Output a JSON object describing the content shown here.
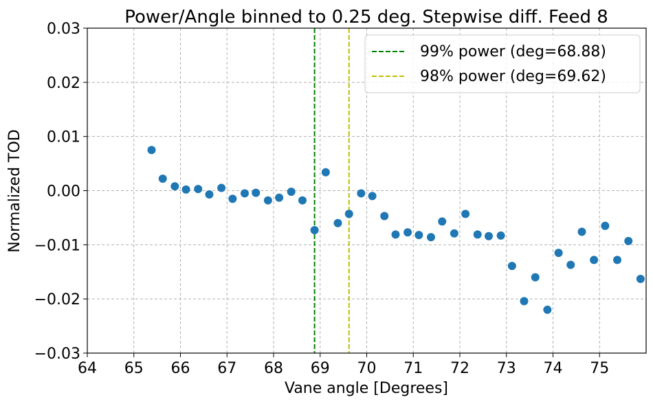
{
  "chart_data": {
    "type": "scatter",
    "title": "Power/Angle binned to 0.25 deg. Stepwise diff. Feed 8",
    "xlabel": "Vane angle [Degrees]",
    "ylabel": "Normalized TOD",
    "xlim": [
      64,
      76
    ],
    "ylim": [
      -0.03,
      0.03
    ],
    "x_ticks": [
      64,
      65,
      66,
      67,
      68,
      69,
      70,
      71,
      72,
      73,
      74,
      75
    ],
    "x_tick_labels": [
      "64",
      "65",
      "66",
      "67",
      "68",
      "69",
      "70",
      "71",
      "72",
      "73",
      "74",
      "75"
    ],
    "y_ticks": [
      -0.03,
      -0.02,
      -0.01,
      0.0,
      0.01,
      0.02,
      0.03
    ],
    "y_tick_labels": [
      "−0.03",
      "−0.02",
      "−0.01",
      "0.00",
      "0.01",
      "0.02",
      "0.03"
    ],
    "grid": true,
    "legend_position": "top-right",
    "marker_color": "#1f77b4",
    "series": [
      {
        "points": [
          [
            65.38,
            0.0075
          ],
          [
            65.62,
            0.0022
          ],
          [
            65.88,
            0.0008
          ],
          [
            66.12,
            0.0002
          ],
          [
            66.38,
            0.0003
          ],
          [
            66.62,
            -0.0007
          ],
          [
            66.88,
            0.0005
          ],
          [
            67.12,
            -0.0015
          ],
          [
            67.38,
            -0.0005
          ],
          [
            67.62,
            -0.0004
          ],
          [
            67.88,
            -0.0018
          ],
          [
            68.12,
            -0.0013
          ],
          [
            68.38,
            -0.0002
          ],
          [
            68.62,
            -0.0018
          ],
          [
            68.88,
            -0.0073
          ],
          [
            69.12,
            0.0034
          ],
          [
            69.38,
            -0.006
          ],
          [
            69.62,
            -0.0043
          ],
          [
            69.88,
            -0.0005
          ],
          [
            70.12,
            -0.001
          ],
          [
            70.38,
            -0.0047
          ],
          [
            70.62,
            -0.0081
          ],
          [
            70.88,
            -0.0077
          ],
          [
            71.12,
            -0.0082
          ],
          [
            71.38,
            -0.0086
          ],
          [
            71.62,
            -0.0057
          ],
          [
            71.88,
            -0.0079
          ],
          [
            72.12,
            -0.0043
          ],
          [
            72.38,
            -0.0081
          ],
          [
            72.62,
            -0.0084
          ],
          [
            72.88,
            -0.0083
          ],
          [
            73.12,
            -0.0139
          ],
          [
            73.38,
            -0.0204
          ],
          [
            73.62,
            -0.016
          ],
          [
            73.88,
            -0.022
          ],
          [
            74.12,
            -0.0115
          ],
          [
            74.38,
            -0.0137
          ],
          [
            74.62,
            -0.0076
          ],
          [
            74.88,
            -0.0128
          ],
          [
            75.12,
            -0.0065
          ],
          [
            75.38,
            -0.0128
          ],
          [
            75.62,
            -0.0093
          ],
          [
            75.88,
            -0.0163
          ]
        ]
      }
    ],
    "vlines": [
      {
        "x": 68.88,
        "label": "99% power (deg=68.88)",
        "color": "#008000",
        "style": "dashed"
      },
      {
        "x": 69.62,
        "label": "98% power (deg=69.62)",
        "color": "#bfbf00",
        "style": "dashed"
      }
    ]
  }
}
